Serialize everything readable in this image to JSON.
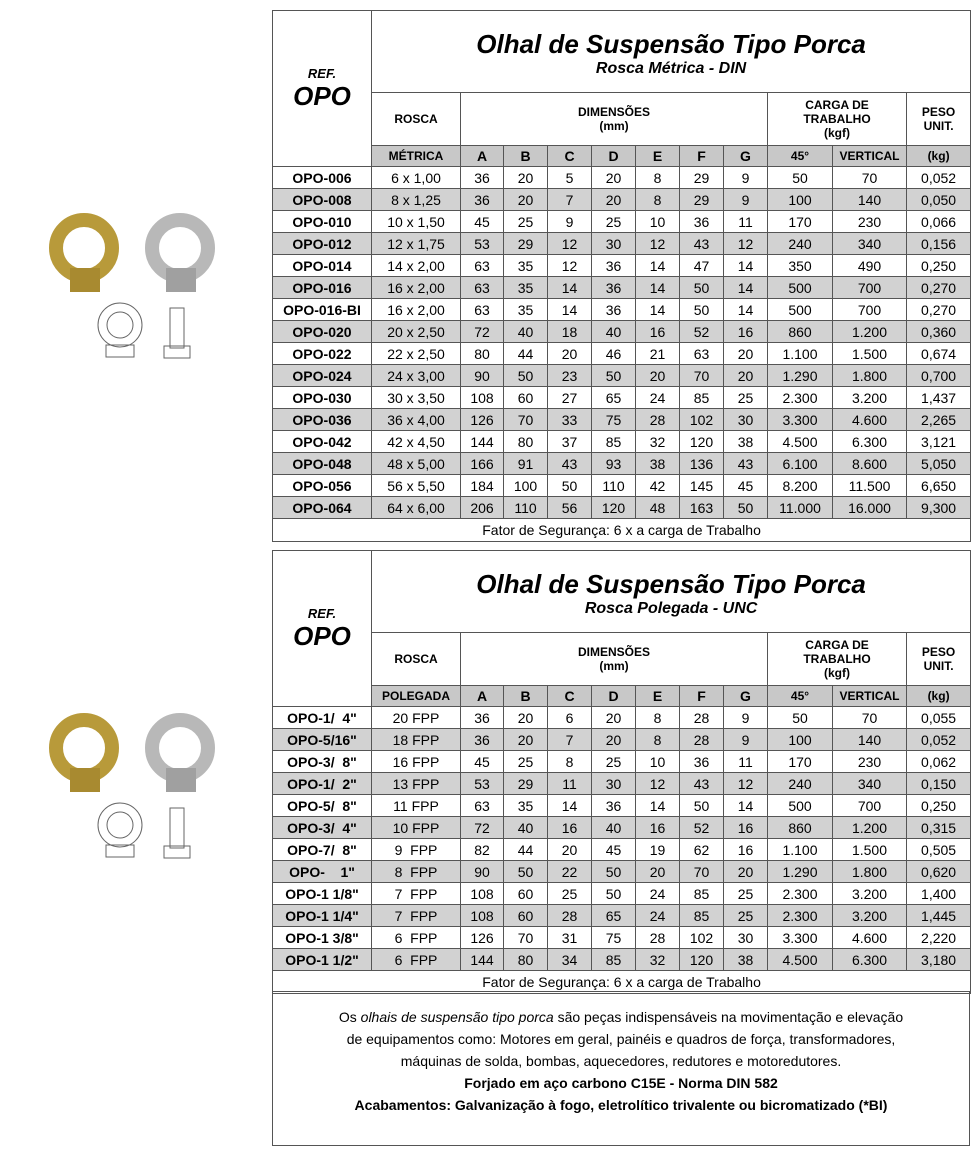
{
  "tables": [
    {
      "ref_label": "REF.",
      "ref": "OPO",
      "title": "Olhal de Suspensão Tipo Porca",
      "subtitle": "Rosca Métrica - DIN",
      "headers": {
        "rosca": "ROSCA",
        "dimensoes": "DIMENSÕES",
        "dim_unit": "(mm)",
        "carga": "CARGA DE TRABALHO",
        "carga_unit": "(kgf)",
        "peso": "PESO UNIT."
      },
      "subheaders": [
        "MÉTRICA",
        "A",
        "B",
        "C",
        "D",
        "E",
        "F",
        "G",
        "45°",
        "VERTICAL",
        "(kg)"
      ],
      "rows": [
        [
          "OPO-006",
          "6 x 1,00",
          "36",
          "20",
          "5",
          "20",
          "8",
          "29",
          "9",
          "50",
          "70",
          "0,052"
        ],
        [
          "OPO-008",
          "8 x 1,25",
          "36",
          "20",
          "7",
          "20",
          "8",
          "29",
          "9",
          "100",
          "140",
          "0,050"
        ],
        [
          "OPO-010",
          "10 x 1,50",
          "45",
          "25",
          "9",
          "25",
          "10",
          "36",
          "11",
          "170",
          "230",
          "0,066"
        ],
        [
          "OPO-012",
          "12 x 1,75",
          "53",
          "29",
          "12",
          "30",
          "12",
          "43",
          "12",
          "240",
          "340",
          "0,156"
        ],
        [
          "OPO-014",
          "14 x 2,00",
          "63",
          "35",
          "12",
          "36",
          "14",
          "47",
          "14",
          "350",
          "490",
          "0,250"
        ],
        [
          "OPO-016",
          "16 x 2,00",
          "63",
          "35",
          "14",
          "36",
          "14",
          "50",
          "14",
          "500",
          "700",
          "0,270"
        ],
        [
          "OPO-016-BI",
          "16 x 2,00",
          "63",
          "35",
          "14",
          "36",
          "14",
          "50",
          "14",
          "500",
          "700",
          "0,270"
        ],
        [
          "OPO-020",
          "20 x 2,50",
          "72",
          "40",
          "18",
          "40",
          "16",
          "52",
          "16",
          "860",
          "1.200",
          "0,360"
        ],
        [
          "OPO-022",
          "22 x 2,50",
          "80",
          "44",
          "20",
          "46",
          "21",
          "63",
          "20",
          "1.100",
          "1.500",
          "0,674"
        ],
        [
          "OPO-024",
          "24 x 3,00",
          "90",
          "50",
          "23",
          "50",
          "20",
          "70",
          "20",
          "1.290",
          "1.800",
          "0,700"
        ],
        [
          "OPO-030",
          "30 x 3,50",
          "108",
          "60",
          "27",
          "65",
          "24",
          "85",
          "25",
          "2.300",
          "3.200",
          "1,437"
        ],
        [
          "OPO-036",
          "36 x 4,00",
          "126",
          "70",
          "33",
          "75",
          "28",
          "102",
          "30",
          "3.300",
          "4.600",
          "2,265"
        ],
        [
          "OPO-042",
          "42 x 4,50",
          "144",
          "80",
          "37",
          "85",
          "32",
          "120",
          "38",
          "4.500",
          "6.300",
          "3,121"
        ],
        [
          "OPO-048",
          "48 x 5,00",
          "166",
          "91",
          "43",
          "93",
          "38",
          "136",
          "43",
          "6.100",
          "8.600",
          "5,050"
        ],
        [
          "OPO-056",
          "56 x 5,50",
          "184",
          "100",
          "50",
          "110",
          "42",
          "145",
          "45",
          "8.200",
          "11.500",
          "6,650"
        ],
        [
          "OPO-064",
          "64 x 6,00",
          "206",
          "110",
          "56",
          "120",
          "48",
          "163",
          "50",
          "11.000",
          "16.000",
          "9,300"
        ]
      ],
      "footer": "Fator de Segurança: 6 x a carga de Trabalho"
    },
    {
      "ref_label": "REF.",
      "ref": "OPO",
      "title": "Olhal de Suspensão Tipo Porca",
      "subtitle": "Rosca Polegada - UNC",
      "headers": {
        "rosca": "ROSCA",
        "dimensoes": "DIMENSÕES",
        "dim_unit": "(mm)",
        "carga": "CARGA DE TRABALHO",
        "carga_unit": "(kgf)",
        "peso": "PESO UNIT."
      },
      "subheaders": [
        "POLEGADA",
        "A",
        "B",
        "C",
        "D",
        "E",
        "F",
        "G",
        "45°",
        "VERTICAL",
        "(kg)"
      ],
      "rows": [
        [
          "OPO-1/  4\"",
          "20 FPP",
          "36",
          "20",
          "6",
          "20",
          "8",
          "28",
          "9",
          "50",
          "70",
          "0,055"
        ],
        [
          "OPO-5/16\"",
          "18 FPP",
          "36",
          "20",
          "7",
          "20",
          "8",
          "28",
          "9",
          "100",
          "140",
          "0,052"
        ],
        [
          "OPO-3/  8\"",
          "16 FPP",
          "45",
          "25",
          "8",
          "25",
          "10",
          "36",
          "11",
          "170",
          "230",
          "0,062"
        ],
        [
          "OPO-1/  2\"",
          "13 FPP",
          "53",
          "29",
          "11",
          "30",
          "12",
          "43",
          "12",
          "240",
          "340",
          "0,150"
        ],
        [
          "OPO-5/  8\"",
          "11 FPP",
          "63",
          "35",
          "14",
          "36",
          "14",
          "50",
          "14",
          "500",
          "700",
          "0,250"
        ],
        [
          "OPO-3/  4\"",
          "10 FPP",
          "72",
          "40",
          "16",
          "40",
          "16",
          "52",
          "16",
          "860",
          "1.200",
          "0,315"
        ],
        [
          "OPO-7/  8\"",
          "9  FPP",
          "82",
          "44",
          "20",
          "45",
          "19",
          "62",
          "16",
          "1.100",
          "1.500",
          "0,505"
        ],
        [
          "OPO-    1\"",
          "8  FPP",
          "90",
          "50",
          "22",
          "50",
          "20",
          "70",
          "20",
          "1.290",
          "1.800",
          "0,620"
        ],
        [
          "OPO-1 1/8\"",
          "7  FPP",
          "108",
          "60",
          "25",
          "50",
          "24",
          "85",
          "25",
          "2.300",
          "3.200",
          "1,400"
        ],
        [
          "OPO-1 1/4\"",
          "7  FPP",
          "108",
          "60",
          "28",
          "65",
          "24",
          "85",
          "25",
          "2.300",
          "3.200",
          "1,445"
        ],
        [
          "OPO-1 3/8\"",
          "6  FPP",
          "126",
          "70",
          "31",
          "75",
          "28",
          "102",
          "30",
          "3.300",
          "4.600",
          "2,220"
        ],
        [
          "OPO-1 1/2\"",
          "6  FPP",
          "144",
          "80",
          "34",
          "85",
          "32",
          "120",
          "38",
          "4.500",
          "6.300",
          "3,180"
        ]
      ],
      "footer": "Fator de Segurança: 6 x a carga de Trabalho"
    }
  ],
  "description": {
    "before": "Os",
    "italic": "olhais de suspensão tipo porca",
    "after": "são peças indispensáveis na movimentação e elevação de equipamentos como: Motores em geral, painéis e quadros de força, transformadores, máquinas de solda, bombas, aquecedores, redutores e motoredutores.",
    "material": "Forjado em aço carbono C15E - Norma DIN 582",
    "finish": "Acabamentos: Galvanização à fogo, eletrolítico trivalente ou bicromatizado (*BI)"
  }
}
